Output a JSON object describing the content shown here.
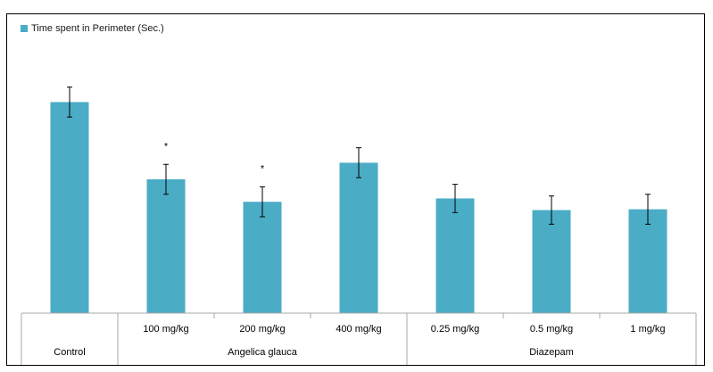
{
  "chart_data": {
    "type": "bar",
    "legend": "Time spent in Perimeter (Sec.)",
    "legend_position": "top-left",
    "color": "#4BACC6",
    "categories": [
      {
        "label": "",
        "group": "Control"
      },
      {
        "label": "100 mg/kg",
        "group": "Angelica glauca"
      },
      {
        "label": "200 mg/kg",
        "group": "Angelica glauca"
      },
      {
        "label": "400 mg/kg",
        "group": "Angelica glauca"
      },
      {
        "label": "0.25 mg/kg",
        "group": "Diazepam"
      },
      {
        "label": "0.5 mg/kg",
        "group": "Diazepam"
      },
      {
        "label": "1 mg/kg",
        "group": "Diazepam"
      }
    ],
    "groups": [
      "Control",
      "Angelica glauca",
      "Diazepam"
    ],
    "values": [
      254,
      161,
      134,
      181,
      138,
      124,
      125
    ],
    "errors": [
      18,
      18,
      18,
      18,
      17,
      17,
      18
    ],
    "significance": [
      "",
      "*",
      "*",
      "",
      "",
      "",
      ""
    ],
    "ylim": [
      0,
      350
    ],
    "grid": false,
    "y_axis_visible": false
  }
}
